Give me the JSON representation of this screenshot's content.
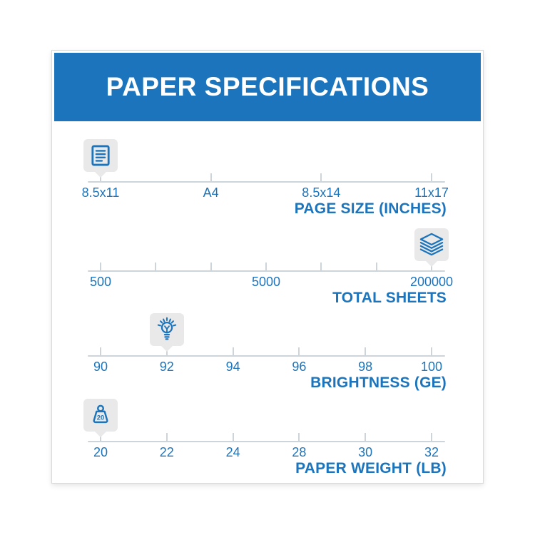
{
  "header": {
    "title": "PAPER SPECIFICATIONS",
    "background_color": "#1C75BC",
    "text_color": "#FFFFFF"
  },
  "colors": {
    "brand_blue": "#1C75BC",
    "axis_line": "#CDD5DB",
    "icon_box": "#E9E9E9",
    "card_border": "#D9D9D9"
  },
  "scales": [
    {
      "title": "PAGE SIZE (INCHES)",
      "icon": "document-page-icon",
      "selected_index": 0,
      "ticks": [
        {
          "label": "8.5x11"
        },
        {
          "label": "A4"
        },
        {
          "label": "8.5x14"
        },
        {
          "label": "11x17"
        }
      ]
    },
    {
      "title": "TOTAL SHEETS",
      "icon": "sheets-stack-icon",
      "selected_index": 6,
      "ticks": [
        {
          "label": "500"
        },
        {
          "label": ""
        },
        {
          "label": ""
        },
        {
          "label": "5000"
        },
        {
          "label": ""
        },
        {
          "label": ""
        },
        {
          "label": "200000"
        }
      ]
    },
    {
      "title": "BRIGHTNESS (GE)",
      "icon": "lightbulb-icon",
      "selected_index": 1,
      "ticks": [
        {
          "label": "90"
        },
        {
          "label": "92"
        },
        {
          "label": "94"
        },
        {
          "label": "96"
        },
        {
          "label": "98"
        },
        {
          "label": "100"
        }
      ]
    },
    {
      "title": "PAPER WEIGHT (LB)",
      "icon": "weight-icon",
      "icon_text": "20",
      "selected_index": 0,
      "ticks": [
        {
          "label": "20"
        },
        {
          "label": "22"
        },
        {
          "label": "24"
        },
        {
          "label": "28"
        },
        {
          "label": "30"
        },
        {
          "label": "32"
        }
      ]
    }
  ],
  "chart_data": {
    "type": "table",
    "title": "PAPER SPECIFICATIONS",
    "scales": [
      {
        "label": "PAGE SIZE (INCHES)",
        "options": [
          "8.5x11",
          "A4",
          "8.5x14",
          "11x17"
        ],
        "selected": "8.5x11"
      },
      {
        "label": "TOTAL SHEETS",
        "options": [
          "500",
          "5000",
          "200000"
        ],
        "selected": "200000",
        "tick_count": 7
      },
      {
        "label": "BRIGHTNESS (GE)",
        "options": [
          "90",
          "92",
          "94",
          "96",
          "98",
          "100"
        ],
        "selected": "92"
      },
      {
        "label": "PAPER WEIGHT (LB)",
        "options": [
          "20",
          "22",
          "24",
          "28",
          "30",
          "32"
        ],
        "selected": "20"
      }
    ],
    "legend_position": "none",
    "grid": false
  }
}
